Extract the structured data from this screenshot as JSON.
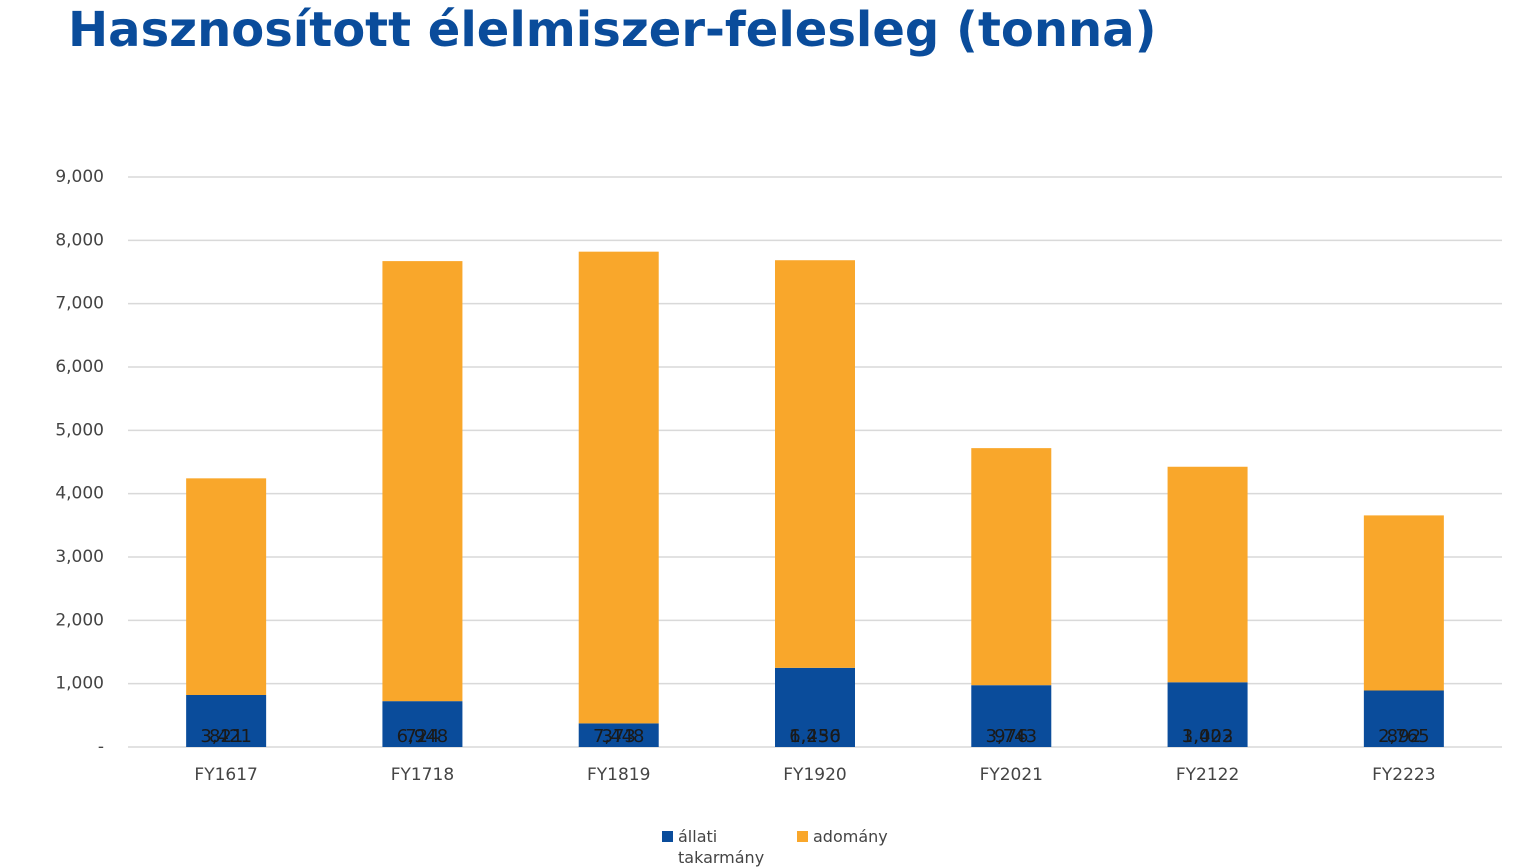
{
  "chart_data": {
    "type": "stacked_bar",
    "title": "Hasznosított élelmiszer-felesleg (tonna)",
    "categories": [
      "FY1617",
      "FY1718",
      "FY1819",
      "FY1920",
      "FY2021",
      "FY2122",
      "FY2223"
    ],
    "series": [
      {
        "name": "állati takarmány",
        "color": "#0a4c9b",
        "values": [
          821,
          724,
          373,
          1250,
          976,
          1022,
          892
        ],
        "value_labels": [
          "821",
          "724",
          "373",
          "1,250",
          "976",
          "1,022",
          "892"
        ]
      },
      {
        "name": "adomány",
        "color": "#f9a72b",
        "values": [
          3421,
          6948,
          7448,
          6436,
          3743,
          3403,
          2765
        ],
        "value_labels": [
          "3,421",
          "6,948",
          "7,448",
          "6,436",
          "3,743",
          "3,403",
          "2,765"
        ]
      }
    ],
    "ylim": [
      0,
      9000
    ],
    "yticks": [
      {
        "value": 0,
        "label": "-"
      },
      {
        "value": 1000,
        "label": "1,000"
      },
      {
        "value": 2000,
        "label": "2,000"
      },
      {
        "value": 3000,
        "label": "3,000"
      },
      {
        "value": 4000,
        "label": "4,000"
      },
      {
        "value": 5000,
        "label": "5,000"
      },
      {
        "value": 6000,
        "label": "6,000"
      },
      {
        "value": 7000,
        "label": "7,000"
      },
      {
        "value": 8000,
        "label": "8,000"
      },
      {
        "value": 9000,
        "label": "9,000"
      }
    ],
    "grid": true
  }
}
